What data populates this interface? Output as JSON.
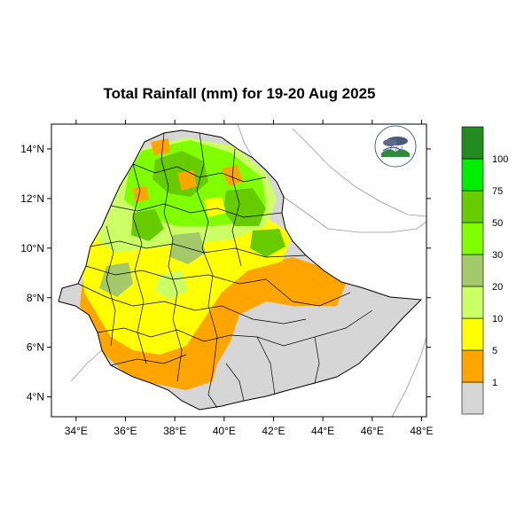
{
  "title": "Total Rainfall (mm) for 19-20 Aug 2025",
  "map": {
    "lon_range": [
      33,
      48.2
    ],
    "lat_range": [
      3.2,
      15.0
    ],
    "x_ticks": [
      {
        "value": 34,
        "label": "34°E"
      },
      {
        "value": 36,
        "label": "36°E"
      },
      {
        "value": 38,
        "label": "38°E"
      },
      {
        "value": 40,
        "label": "40°E"
      },
      {
        "value": 42,
        "label": "42°E"
      },
      {
        "value": 44,
        "label": "44°E"
      },
      {
        "value": 46,
        "label": "46°E"
      },
      {
        "value": 48,
        "label": "48°E"
      }
    ],
    "y_ticks": [
      {
        "value": 4,
        "label": "4°N"
      },
      {
        "value": 6,
        "label": "6°N"
      },
      {
        "value": 8,
        "label": "8°N"
      },
      {
        "value": 10,
        "label": "10°N"
      },
      {
        "value": 12,
        "label": "12°N"
      },
      {
        "value": 14,
        "label": "14°N"
      }
    ]
  },
  "legend": {
    "bins": [
      {
        "color": "#d6d6d6",
        "label": "1"
      },
      {
        "color": "#ffa500",
        "label": "5"
      },
      {
        "color": "#ffff00",
        "label": "10"
      },
      {
        "color": "#ccff66",
        "label": "20"
      },
      {
        "color": "#a3c96b",
        "label": "30"
      },
      {
        "color": "#7fff00",
        "label": "50"
      },
      {
        "color": "#66cc00",
        "label": "75"
      },
      {
        "color": "#00ee00",
        "label": "100"
      },
      {
        "color": "#228b22",
        "label": ""
      }
    ]
  },
  "colors": {
    "dry": "#d6d6d6",
    "light": "#ffa500",
    "moderate": "#ffff00",
    "heavy": "#7fff00",
    "very_heavy": "#66cc00"
  },
  "logo_icon": "ethiopian-meteorology-institute-logo"
}
